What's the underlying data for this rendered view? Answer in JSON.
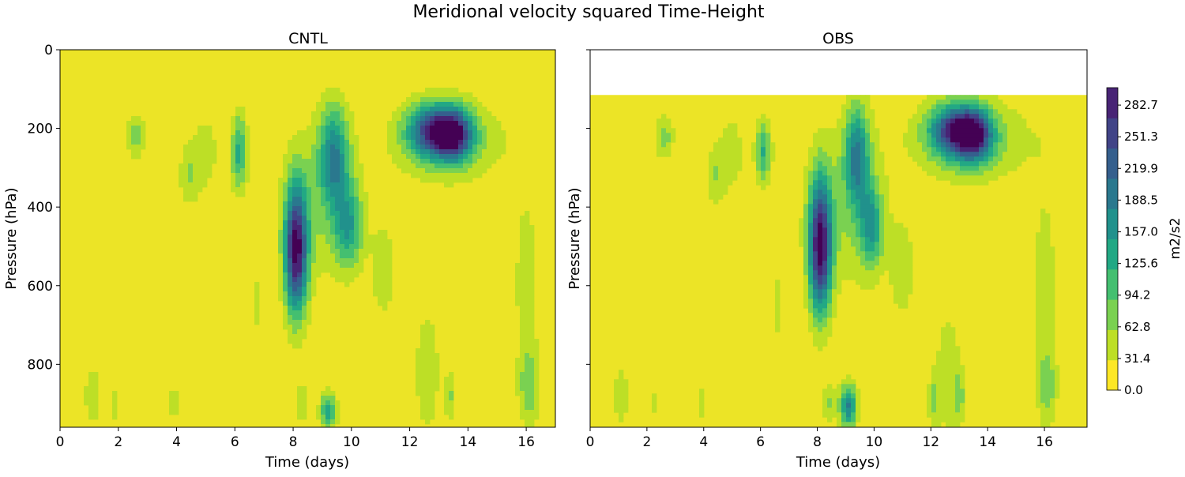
{
  "figure": {
    "title": "Meridional velocity squared Time-Height"
  },
  "colors": {
    "viridis": [
      "#440154",
      "#482475",
      "#414487",
      "#355f8d",
      "#2a788e",
      "#21918c",
      "#22a884",
      "#44bf70",
      "#7ad151",
      "#bddf26",
      "#fde725"
    ],
    "background_fill": "#ece426"
  },
  "chart_data": [
    {
      "type": "heatmap",
      "title": "CNTL",
      "xlabel": "Time (days)",
      "ylabel": "Pressure (hPa)",
      "xlim": [
        0,
        17
      ],
      "ylim": [
        960,
        0
      ],
      "y_inverted": true,
      "xticks": [
        "0",
        "2",
        "4",
        "6",
        "8",
        "10",
        "12",
        "14",
        "16"
      ],
      "yticks": [
        "0",
        "200",
        "400",
        "600",
        "800"
      ],
      "data_top_pressure": 0,
      "features": [
        {
          "t": 8.1,
          "p": 510,
          "sigma_t": 0.28,
          "sigma_p": 115,
          "value": 300
        },
        {
          "t": 9.4,
          "p": 270,
          "sigma_t": 0.35,
          "sigma_p": 90,
          "value": 160
        },
        {
          "t": 9.9,
          "p": 450,
          "sigma_t": 0.35,
          "sigma_p": 75,
          "value": 130
        },
        {
          "t": 8.9,
          "p": 380,
          "sigma_t": 0.9,
          "sigma_p": 150,
          "value": 55
        },
        {
          "t": 13.5,
          "p": 215,
          "sigma_t": 0.45,
          "sigma_p": 45,
          "value": 250
        },
        {
          "t": 12.7,
          "p": 205,
          "sigma_t": 0.55,
          "sigma_p": 45,
          "value": 190
        },
        {
          "t": 13.3,
          "p": 230,
          "sigma_t": 1.4,
          "sigma_p": 75,
          "value": 80
        },
        {
          "t": 6.15,
          "p": 260,
          "sigma_t": 0.2,
          "sigma_p": 70,
          "value": 130
        },
        {
          "t": 5.0,
          "p": 260,
          "sigma_t": 0.35,
          "sigma_p": 80,
          "value": 45
        },
        {
          "t": 4.4,
          "p": 320,
          "sigma_t": 0.25,
          "sigma_p": 60,
          "value": 55
        },
        {
          "t": 2.6,
          "p": 220,
          "sigma_t": 0.25,
          "sigma_p": 40,
          "value": 75
        },
        {
          "t": 16.0,
          "p": 590,
          "sigma_t": 0.35,
          "sigma_p": 200,
          "value": 45
        },
        {
          "t": 16.1,
          "p": 860,
          "sigma_t": 0.25,
          "sigma_p": 70,
          "value": 70
        },
        {
          "t": 12.6,
          "p": 820,
          "sigma_t": 0.35,
          "sigma_p": 130,
          "value": 50
        },
        {
          "t": 11.1,
          "p": 560,
          "sigma_t": 0.3,
          "sigma_p": 90,
          "value": 55
        },
        {
          "t": 9.2,
          "p": 920,
          "sigma_t": 0.2,
          "sigma_p": 35,
          "value": 140
        },
        {
          "t": 8.3,
          "p": 900,
          "sigma_t": 0.2,
          "sigma_p": 35,
          "value": 60
        },
        {
          "t": 1.1,
          "p": 880,
          "sigma_t": 0.2,
          "sigma_p": 60,
          "value": 55
        },
        {
          "t": 1.9,
          "p": 900,
          "sigma_t": 0.12,
          "sigma_p": 40,
          "value": 45
        },
        {
          "t": 3.9,
          "p": 900,
          "sigma_t": 0.15,
          "sigma_p": 40,
          "value": 45
        },
        {
          "t": 13.4,
          "p": 880,
          "sigma_t": 0.15,
          "sigma_p": 50,
          "value": 60
        },
        {
          "t": 6.8,
          "p": 650,
          "sigma_t": 0.12,
          "sigma_p": 80,
          "value": 40
        }
      ]
    },
    {
      "type": "heatmap",
      "title": "OBS",
      "xlabel": "Time (days)",
      "ylabel": "Pressure (hPa)",
      "xlim": [
        0,
        17.5
      ],
      "ylim": [
        960,
        0
      ],
      "y_inverted": true,
      "xticks": [
        "0",
        "2",
        "4",
        "6",
        "8",
        "10",
        "12",
        "14",
        "16"
      ],
      "yticks": [
        "0",
        "200",
        "400",
        "600",
        "800"
      ],
      "data_top_pressure": 115,
      "features": [
        {
          "t": 8.1,
          "p": 500,
          "sigma_t": 0.28,
          "sigma_p": 120,
          "value": 300
        },
        {
          "t": 9.4,
          "p": 270,
          "sigma_t": 0.3,
          "sigma_p": 90,
          "value": 165
        },
        {
          "t": 9.9,
          "p": 450,
          "sigma_t": 0.3,
          "sigma_p": 75,
          "value": 130
        },
        {
          "t": 9.0,
          "p": 400,
          "sigma_t": 1.0,
          "sigma_p": 160,
          "value": 55
        },
        {
          "t": 13.5,
          "p": 215,
          "sigma_t": 0.45,
          "sigma_p": 45,
          "value": 255
        },
        {
          "t": 12.7,
          "p": 205,
          "sigma_t": 0.55,
          "sigma_p": 45,
          "value": 190
        },
        {
          "t": 13.4,
          "p": 230,
          "sigma_t": 1.5,
          "sigma_p": 75,
          "value": 80
        },
        {
          "t": 6.1,
          "p": 260,
          "sigma_t": 0.2,
          "sigma_p": 60,
          "value": 120
        },
        {
          "t": 5.0,
          "p": 260,
          "sigma_t": 0.35,
          "sigma_p": 80,
          "value": 45
        },
        {
          "t": 4.4,
          "p": 320,
          "sigma_t": 0.25,
          "sigma_p": 60,
          "value": 55
        },
        {
          "t": 2.6,
          "p": 220,
          "sigma_t": 0.25,
          "sigma_p": 40,
          "value": 75
        },
        {
          "t": 16.0,
          "p": 590,
          "sigma_t": 0.35,
          "sigma_p": 200,
          "value": 45
        },
        {
          "t": 16.1,
          "p": 860,
          "sigma_t": 0.25,
          "sigma_p": 70,
          "value": 65
        },
        {
          "t": 12.6,
          "p": 820,
          "sigma_t": 0.35,
          "sigma_p": 130,
          "value": 50
        },
        {
          "t": 11.0,
          "p": 560,
          "sigma_t": 0.3,
          "sigma_p": 90,
          "value": 55
        },
        {
          "t": 9.1,
          "p": 905,
          "sigma_t": 0.22,
          "sigma_p": 40,
          "value": 180
        },
        {
          "t": 8.4,
          "p": 900,
          "sigma_t": 0.2,
          "sigma_p": 35,
          "value": 60
        },
        {
          "t": 1.1,
          "p": 880,
          "sigma_t": 0.2,
          "sigma_p": 60,
          "value": 55
        },
        {
          "t": 2.2,
          "p": 900,
          "sigma_t": 0.12,
          "sigma_p": 40,
          "value": 40
        },
        {
          "t": 3.9,
          "p": 900,
          "sigma_t": 0.15,
          "sigma_p": 40,
          "value": 45
        },
        {
          "t": 13.0,
          "p": 880,
          "sigma_t": 0.15,
          "sigma_p": 50,
          "value": 60
        },
        {
          "t": 12.1,
          "p": 890,
          "sigma_t": 0.15,
          "sigma_p": 50,
          "value": 60
        },
        {
          "t": 6.6,
          "p": 650,
          "sigma_t": 0.12,
          "sigma_p": 80,
          "value": 40
        }
      ]
    }
  ],
  "colorbar": {
    "label": "m2/s2",
    "min": 0,
    "max": 300,
    "ticks": [
      "0.0",
      "31.4",
      "62.8",
      "94.2",
      "125.6",
      "157.0",
      "188.5",
      "219.9",
      "251.3",
      "282.7"
    ]
  }
}
